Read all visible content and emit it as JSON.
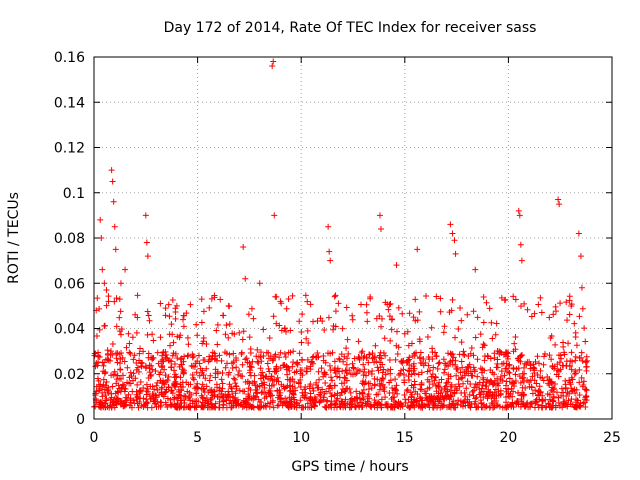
{
  "chart_data": {
    "type": "scatter",
    "title": "Day 172 of 2014, Rate Of TEC Index for receiver sass",
    "xlabel": "GPS time / hours",
    "ylabel": "ROTI / TECUs",
    "xlim": [
      0,
      25
    ],
    "ylim": [
      0,
      0.16
    ],
    "xticks": [
      0,
      5,
      10,
      15,
      20,
      25
    ],
    "yticks": [
      0,
      0.02,
      0.04,
      0.06,
      0.08,
      0.1,
      0.12,
      0.14,
      0.16
    ],
    "xtick_labels": [
      "0",
      "5",
      "10",
      "15",
      "20",
      "25"
    ],
    "ytick_labels": [
      "0",
      "0.02",
      "0.04",
      "0.06",
      "0.08",
      "0.1",
      "0.12",
      "0.14",
      "0.16"
    ],
    "grid": true,
    "legend": "none",
    "marker": "+",
    "color": "#ff0000",
    "series": [
      {
        "name": "ROTI",
        "x": [
          0.3,
          0.35,
          0.4,
          0.5,
          0.6,
          0.7,
          0.85,
          0.9,
          0.95,
          1.0,
          1.05,
          1.3,
          1.5,
          2.5,
          2.55,
          2.6,
          4.0,
          5.2,
          6.5,
          7.2,
          7.3,
          8.0,
          8.6,
          8.65,
          8.7,
          8.8,
          9.0,
          11.3,
          11.35,
          11.4,
          13.8,
          13.85,
          14.6,
          15.6,
          17.2,
          17.3,
          17.4,
          17.45,
          18.4,
          20.5,
          20.55,
          20.6,
          20.65,
          22.4,
          22.45,
          23.4,
          23.5,
          23.55
        ],
        "y": [
          0.088,
          0.08,
          0.066,
          0.06,
          0.057,
          0.052,
          0.11,
          0.105,
          0.096,
          0.085,
          0.075,
          0.06,
          0.066,
          0.09,
          0.078,
          0.072,
          0.05,
          0.053,
          0.05,
          0.076,
          0.062,
          0.06,
          0.156,
          0.158,
          0.09,
          0.054,
          0.052,
          0.085,
          0.074,
          0.07,
          0.09,
          0.084,
          0.068,
          0.075,
          0.086,
          0.082,
          0.079,
          0.073,
          0.066,
          0.092,
          0.09,
          0.077,
          0.07,
          0.097,
          0.095,
          0.082,
          0.072,
          0.058
        ]
      }
    ],
    "dense_band": {
      "description_free": true,
      "x_range": [
        0.0,
        23.8
      ],
      "base_range": [
        0.005,
        0.03
      ],
      "peak_range": [
        0.03,
        0.055
      ]
    }
  }
}
